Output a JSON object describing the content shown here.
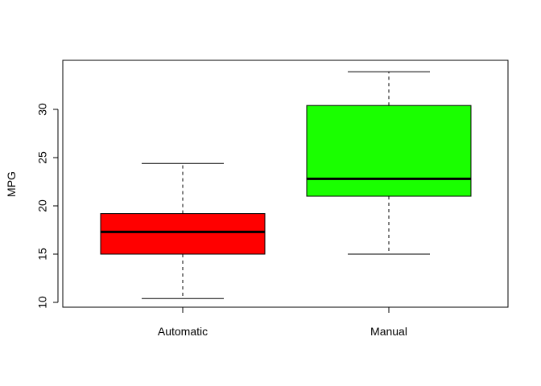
{
  "chart_data": {
    "type": "box",
    "title": "",
    "xlabel": "",
    "ylabel": "MPG",
    "ylim": [
      9.5,
      34.5
    ],
    "yticks": [
      10,
      15,
      20,
      25,
      30
    ],
    "ytick_labels": [
      "10",
      "15",
      "20",
      "25",
      "30"
    ],
    "grid": false,
    "categories": [
      "Automatic",
      "Manual"
    ],
    "boxes": [
      {
        "category": "Automatic",
        "whisker_low": 10.4,
        "q1": 15.0,
        "median": 17.3,
        "q3": 19.2,
        "whisker_high": 24.4,
        "color": "#FF0000"
      },
      {
        "category": "Manual",
        "whisker_low": 15.0,
        "q1": 21.0,
        "median": 22.8,
        "q3": 30.4,
        "whisker_high": 33.9,
        "color": "#1AFF00"
      }
    ]
  }
}
